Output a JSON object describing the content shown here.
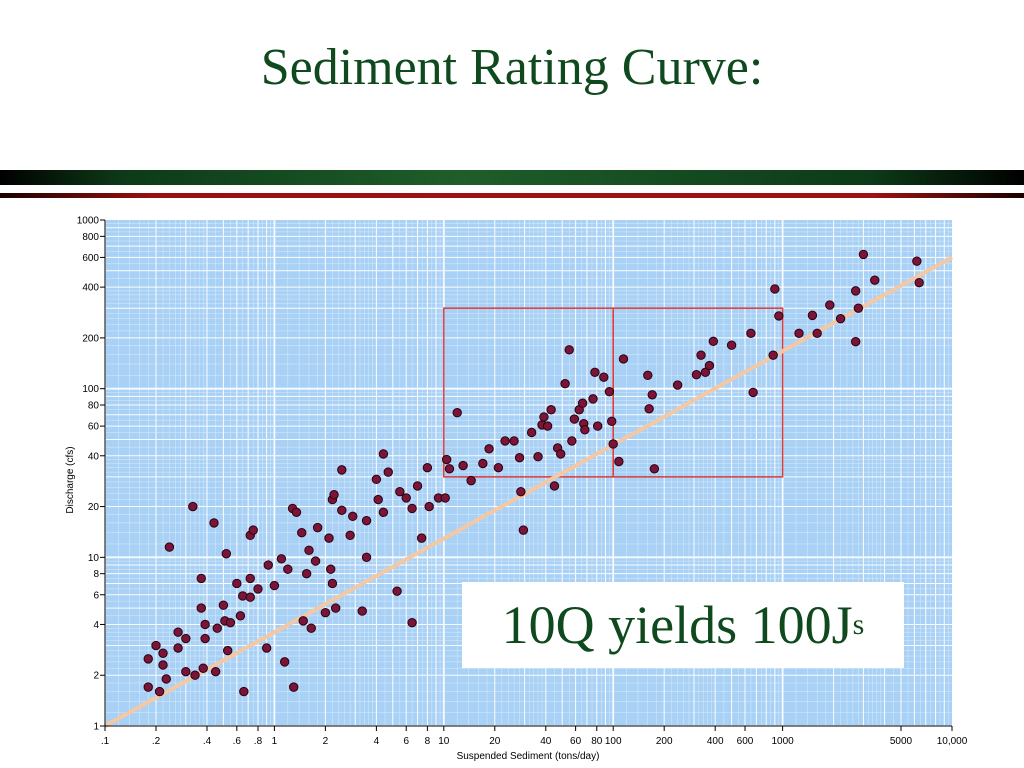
{
  "title": "Sediment Rating Curve:",
  "callout": {
    "main": "10Q yields 100J",
    "sub": "s"
  },
  "colors": {
    "title": "#0f4a1e",
    "plot_bg": "#a9d1f5",
    "grid": "#ffffff",
    "point": "#7a1538",
    "fit": "#f4c8a4",
    "box": "#e03a3a"
  },
  "chart_data": {
    "type": "scatter",
    "xscale": "log",
    "yscale": "log",
    "xlabel": "Suspended Sediment (tons/day)",
    "ylabel": "Discharge (cfs)",
    "xlim": [
      0.1,
      10000
    ],
    "ylim": [
      1,
      1000
    ],
    "grid": true,
    "xticks": [
      {
        "v": 0.1,
        "label": ".1"
      },
      {
        "v": 0.2,
        "label": ".2"
      },
      {
        "v": 0.4,
        "label": ".4"
      },
      {
        "v": 0.6,
        "label": ".6"
      },
      {
        "v": 0.8,
        "label": ".8"
      },
      {
        "v": 1,
        "label": "1"
      },
      {
        "v": 2,
        "label": "2"
      },
      {
        "v": 4,
        "label": "4"
      },
      {
        "v": 6,
        "label": "6"
      },
      {
        "v": 8,
        "label": "8"
      },
      {
        "v": 10,
        "label": "10"
      },
      {
        "v": 20,
        "label": "20"
      },
      {
        "v": 40,
        "label": "40"
      },
      {
        "v": 60,
        "label": "60"
      },
      {
        "v": 80,
        "label": "80"
      },
      {
        "v": 100,
        "label": "100"
      },
      {
        "v": 200,
        "label": "200"
      },
      {
        "v": 400,
        "label": "400"
      },
      {
        "v": 600,
        "label": "600"
      },
      {
        "v": 1000,
        "label": "1000"
      },
      {
        "v": 5000,
        "label": "5000"
      },
      {
        "v": 10000,
        "label": "10,000"
      }
    ],
    "yticks": [
      {
        "v": 1,
        "label": "1"
      },
      {
        "v": 2,
        "label": "2"
      },
      {
        "v": 4,
        "label": "4"
      },
      {
        "v": 6,
        "label": "6"
      },
      {
        "v": 8,
        "label": "8"
      },
      {
        "v": 10,
        "label": "10"
      },
      {
        "v": 20,
        "label": "20"
      },
      {
        "v": 40,
        "label": "40"
      },
      {
        "v": 60,
        "label": "60"
      },
      {
        "v": 80,
        "label": "80"
      },
      {
        "v": 100,
        "label": "100"
      },
      {
        "v": 200,
        "label": "200"
      },
      {
        "v": 400,
        "label": "400"
      },
      {
        "v": 600,
        "label": "600"
      },
      {
        "v": 800,
        "label": "800"
      },
      {
        "v": 1000,
        "label": "1000"
      }
    ],
    "fit_line": [
      [
        0.1,
        1.0
      ],
      [
        10000,
        600
      ]
    ],
    "boxes": [
      {
        "x": [
          10,
          100
        ],
        "y": [
          30,
          300
        ]
      },
      {
        "x": [
          100,
          1000
        ],
        "y": [
          30,
          300
        ]
      }
    ],
    "points": [
      [
        0.18,
        1.7
      ],
      [
        0.18,
        2.5
      ],
      [
        0.2,
        3.0
      ],
      [
        0.21,
        1.6
      ],
      [
        0.22,
        2.3
      ],
      [
        0.22,
        2.7
      ],
      [
        0.23,
        1.9
      ],
      [
        0.24,
        11.5
      ],
      [
        0.27,
        3.6
      ],
      [
        0.27,
        2.9
      ],
      [
        0.3,
        2.1
      ],
      [
        0.3,
        3.3
      ],
      [
        0.33,
        20
      ],
      [
        0.34,
        2.0
      ],
      [
        0.37,
        7.5
      ],
      [
        0.37,
        5.0
      ],
      [
        0.38,
        2.2
      ],
      [
        0.39,
        4.0
      ],
      [
        0.39,
        3.3
      ],
      [
        0.44,
        16
      ],
      [
        0.45,
        2.1
      ],
      [
        0.46,
        3.8
      ],
      [
        0.5,
        5.2
      ],
      [
        0.51,
        4.2
      ],
      [
        0.52,
        10.5
      ],
      [
        0.53,
        2.8
      ],
      [
        0.55,
        4.1
      ],
      [
        0.6,
        7.0
      ],
      [
        0.63,
        4.5
      ],
      [
        0.65,
        5.9
      ],
      [
        0.66,
        1.6
      ],
      [
        0.72,
        7.5
      ],
      [
        0.72,
        5.8
      ],
      [
        0.72,
        13.5
      ],
      [
        0.75,
        14.5
      ],
      [
        0.8,
        6.5
      ],
      [
        0.9,
        2.9
      ],
      [
        0.92,
        9.0
      ],
      [
        1.0,
        6.8
      ],
      [
        1.1,
        9.8
      ],
      [
        1.15,
        2.4
      ],
      [
        1.2,
        8.5
      ],
      [
        1.28,
        19.5
      ],
      [
        1.3,
        1.7
      ],
      [
        1.35,
        18.5
      ],
      [
        1.45,
        14.0
      ],
      [
        1.48,
        4.2
      ],
      [
        1.55,
        8.0
      ],
      [
        1.6,
        11.0
      ],
      [
        1.65,
        3.8
      ],
      [
        1.75,
        9.5
      ],
      [
        1.8,
        15.0
      ],
      [
        2.0,
        4.7
      ],
      [
        2.1,
        13.0
      ],
      [
        2.15,
        8.5
      ],
      [
        2.2,
        22.0
      ],
      [
        2.2,
        7.0
      ],
      [
        2.25,
        23.5
      ],
      [
        2.3,
        5.0
      ],
      [
        2.5,
        19.0
      ],
      [
        2.5,
        33.0
      ],
      [
        2.8,
        13.5
      ],
      [
        2.9,
        17.5
      ],
      [
        3.3,
        4.8
      ],
      [
        3.5,
        10.0
      ],
      [
        3.5,
        16.5
      ],
      [
        4.0,
        29.0
      ],
      [
        4.1,
        22.0
      ],
      [
        4.4,
        41.0
      ],
      [
        4.4,
        18.5
      ],
      [
        4.7,
        32.0
      ],
      [
        5.3,
        6.3
      ],
      [
        5.5,
        24.5
      ],
      [
        6.0,
        22.5
      ],
      [
        6.5,
        4.1
      ],
      [
        6.5,
        19.5
      ],
      [
        7.0,
        26.5
      ],
      [
        7.4,
        13.0
      ],
      [
        8.0,
        34.0
      ],
      [
        8.2,
        20.0
      ],
      [
        9.3,
        22.5
      ],
      [
        10.2,
        22.5
      ],
      [
        10.4,
        38.0
      ],
      [
        10.8,
        33.5
      ],
      [
        12.0,
        72.0
      ],
      [
        13.0,
        35.0
      ],
      [
        14.5,
        28.5
      ],
      [
        17.0,
        36.0
      ],
      [
        18.5,
        44.0
      ],
      [
        21.0,
        34.0
      ],
      [
        23.0,
        49.0
      ],
      [
        26.0,
        49.0
      ],
      [
        28.0,
        39.0
      ],
      [
        28.5,
        24.5
      ],
      [
        29.5,
        14.5
      ],
      [
        33.0,
        55.0
      ],
      [
        36.0,
        39.5
      ],
      [
        38.0,
        61.0
      ],
      [
        39.0,
        68.0
      ],
      [
        41.0,
        60.0
      ],
      [
        43.0,
        75.0
      ],
      [
        45.0,
        26.5
      ],
      [
        47.0,
        44.5
      ],
      [
        49.0,
        41.0
      ],
      [
        52.0,
        107.0
      ],
      [
        55.0,
        170.0
      ],
      [
        57.0,
        49.0
      ],
      [
        59.0,
        66.0
      ],
      [
        63.0,
        75.0
      ],
      [
        66.0,
        82.0
      ],
      [
        67.0,
        62.0
      ],
      [
        68.0,
        57.0
      ],
      [
        76.0,
        87.0
      ],
      [
        78.0,
        125.0
      ],
      [
        81.0,
        60.0
      ],
      [
        88.0,
        117.0
      ],
      [
        95.0,
        96.0
      ],
      [
        98.0,
        64.0
      ],
      [
        100.0,
        47.0
      ],
      [
        108.0,
        37.0
      ],
      [
        115.0,
        150.0
      ],
      [
        160.0,
        120.0
      ],
      [
        163.0,
        76.0
      ],
      [
        170.0,
        92.0
      ],
      [
        175.0,
        33.5
      ],
      [
        240.0,
        105.0
      ],
      [
        310.0,
        121.0
      ],
      [
        330.0,
        158.0
      ],
      [
        350.0,
        125.0
      ],
      [
        370.0,
        137.0
      ],
      [
        390.0,
        191.0
      ],
      [
        500.0,
        181.0
      ],
      [
        650.0,
        213.0
      ],
      [
        670.0,
        95.0
      ],
      [
        880.0,
        158.0
      ],
      [
        900.0,
        390.0
      ],
      [
        950.0,
        270.0
      ],
      [
        1250.0,
        213.0
      ],
      [
        1500.0,
        272.0
      ],
      [
        1600.0,
        213.0
      ],
      [
        1900.0,
        313.0
      ],
      [
        2200.0,
        260.0
      ],
      [
        2700.0,
        380.0
      ],
      [
        2700.0,
        190.0
      ],
      [
        2800.0,
        300.0
      ],
      [
        3000.0,
        625.0
      ],
      [
        3500.0,
        440.0
      ],
      [
        6200.0,
        570.0
      ],
      [
        6400.0,
        425.0
      ]
    ]
  }
}
